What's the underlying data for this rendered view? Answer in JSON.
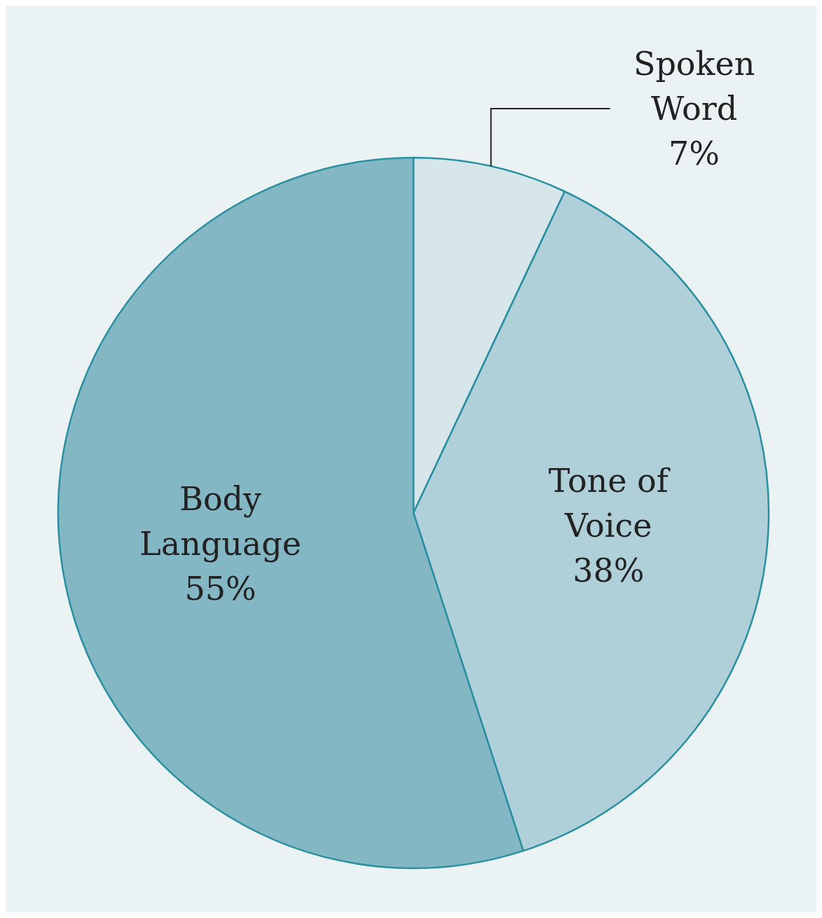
{
  "chart_data": {
    "type": "pie",
    "categories": [
      "Spoken Word",
      "Tone of Voice",
      "Body Language"
    ],
    "values": [
      7,
      38,
      55
    ],
    "colors": [
      "#d6e6ea",
      "#afd0d9",
      "#84b7c4"
    ],
    "value_labels": [
      "7%",
      "38%",
      "55%"
    ],
    "legend": false
  }
}
